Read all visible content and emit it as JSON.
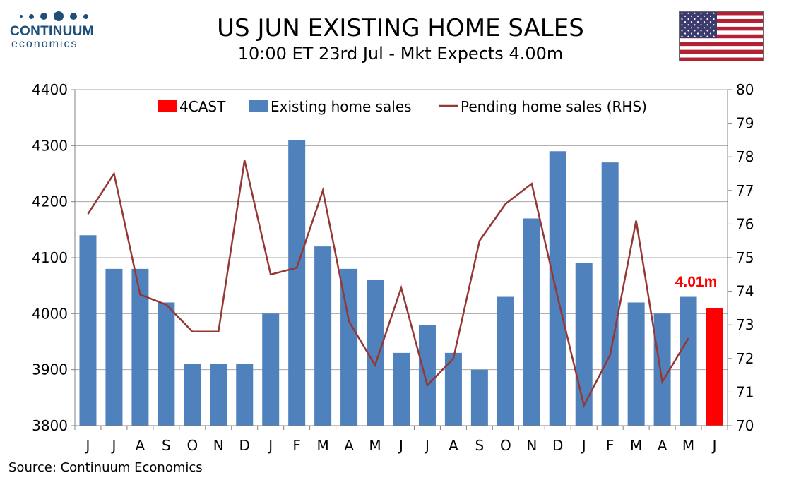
{
  "logo": {
    "word": "CONTINUUM",
    "sub": "economics"
  },
  "title": "US JUN EXISTING HOME SALES",
  "subtitle": "10:00 ET 23rd Jul - Mkt Expects 4.00m",
  "source": "Source: Continuum Economics",
  "flag": {
    "country": "United States",
    "colors": {
      "red": "#b22234",
      "white": "#ffffff",
      "blue": "#3c3b6e"
    }
  },
  "colors": {
    "forecast": "#ff0000",
    "bars": "#4f81bd",
    "line": "#953735",
    "grid": "#a6a6a6",
    "forecast_label": "#ff0000"
  },
  "chart_data": {
    "type": "bar",
    "categories": [
      "J",
      "J",
      "A",
      "S",
      "O",
      "N",
      "D",
      "J",
      "F",
      "M",
      "A",
      "M",
      "J",
      "J",
      "A",
      "S",
      "O",
      "N",
      "D",
      "J",
      "F",
      "M",
      "A",
      "M",
      "J"
    ],
    "series": [
      {
        "name": "4CAST",
        "axis": "left",
        "kind": "bar",
        "values": [
          null,
          null,
          null,
          null,
          null,
          null,
          null,
          null,
          null,
          null,
          null,
          null,
          null,
          null,
          null,
          null,
          null,
          null,
          null,
          null,
          null,
          null,
          null,
          null,
          4010
        ]
      },
      {
        "name": "Existing home sales",
        "axis": "left",
        "kind": "bar",
        "values": [
          4140,
          4080,
          4080,
          4020,
          3910,
          3910,
          3910,
          4000,
          4310,
          4120,
          4080,
          4060,
          3930,
          3980,
          3930,
          3900,
          4030,
          4170,
          4290,
          4090,
          4270,
          4020,
          4000,
          4030,
          null
        ]
      },
      {
        "name": "Pending home sales (RHS)",
        "axis": "right",
        "kind": "line",
        "values": [
          76.3,
          77.5,
          73.9,
          73.6,
          72.8,
          72.8,
          77.9,
          74.5,
          74.7,
          77.0,
          73.1,
          71.8,
          74.1,
          71.2,
          72.0,
          75.5,
          76.6,
          77.2,
          73.8,
          70.6,
          72.1,
          76.1,
          71.3,
          72.6,
          null
        ]
      }
    ],
    "left_axis": {
      "min": 3800,
      "max": 4400,
      "step": 100,
      "ticks": [
        "3800",
        "3900",
        "4000",
        "4100",
        "4200",
        "4300",
        "4400"
      ]
    },
    "right_axis": {
      "min": 70,
      "max": 80,
      "step": 1,
      "ticks": [
        "70",
        "71",
        "72",
        "73",
        "74",
        "75",
        "76",
        "77",
        "78",
        "79",
        "80"
      ]
    },
    "annotation": {
      "text": "4.01m",
      "category_index": 24
    },
    "grid": true,
    "legend_position": "top"
  }
}
